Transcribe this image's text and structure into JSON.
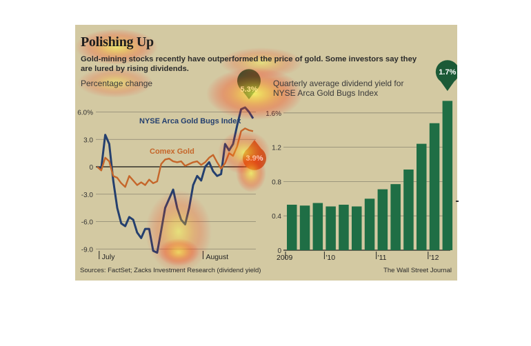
{
  "header": {
    "title": "Polishing Up",
    "subtitle_line1": "Gold-mining stocks recently have outperformed the price of gold. Some investors say they",
    "subtitle_line2": "are lured by rising dividends."
  },
  "footer": {
    "source": "Sources: FactSet; Zacks Investment Research (dividend yield)",
    "credit": "The Wall Street Journal"
  },
  "colors": {
    "background": "#d3c9a2",
    "gold_bugs_line": "#243f6e",
    "comex_line": "#c5662a",
    "bar": "#1f6e45",
    "callout_green": "#1c5a37",
    "callout_orange": "#c8612b"
  },
  "chart_data": [
    {
      "type": "line",
      "ylabel": "Percentage change",
      "ylim": [
        -9.0,
        7.0
      ],
      "yticks": [
        6.0,
        3.0,
        0,
        -3.0,
        -6.0,
        -9.0
      ],
      "ytick_labels": [
        "6.0%",
        "3.0",
        "0",
        "-3.0",
        "-6.0",
        "-9.0"
      ],
      "x_labels": [
        "July",
        "August"
      ],
      "x_label_positions": [
        1,
        27
      ],
      "grid": true,
      "series": [
        {
          "name": "NYSE Arca Gold Bugs Index",
          "end_label": "5.3%",
          "values": [
            0,
            -0.2,
            3.5,
            2.5,
            -1.5,
            -4.5,
            -6.2,
            -6.5,
            -5.5,
            -5.8,
            -7.2,
            -7.8,
            -6.8,
            -6.8,
            -9.2,
            -9.4,
            -7.0,
            -4.5,
            -3.5,
            -2.5,
            -4.5,
            -5.8,
            -6.3,
            -4.5,
            -2.0,
            -1.0,
            -1.5,
            0,
            0.5,
            -0.5,
            -1.0,
            -0.8,
            2.5,
            1.8,
            2.5,
            4.5,
            6.3,
            6.5,
            6.0,
            5.3
          ]
        },
        {
          "name": "Comex Gold",
          "end_label": "3.9%",
          "values": [
            0,
            -0.4,
            1.0,
            0.6,
            -1.0,
            -1.2,
            -1.8,
            -2.2,
            -1.0,
            -1.5,
            -2.0,
            -1.7,
            -2.0,
            -1.4,
            -1.8,
            -1.6,
            0.3,
            0.8,
            0.9,
            0.6,
            0.5,
            0.6,
            0.1,
            0.3,
            0.5,
            0.6,
            0.2,
            0.5,
            1.0,
            1.3,
            0.5,
            -0.2,
            0.4,
            1.5,
            1.2,
            2.2,
            3.9,
            4.2,
            4.0,
            3.9
          ]
        }
      ]
    },
    {
      "type": "bar",
      "title_line1": "Quarterly average dividend yield for",
      "title_line2": "NYSE Arca Gold Bugs Index",
      "ylim": [
        0,
        1.75
      ],
      "yticks": [
        0,
        0.4,
        0.8,
        1.2,
        1.6
      ],
      "ytick_labels": [
        "0",
        "0.4",
        "0.8",
        "1.2",
        "1.6%"
      ],
      "year_labels": [
        "2009",
        "'10",
        "'11",
        "'12"
      ],
      "year_label_indices": [
        0,
        3,
        7,
        11
      ],
      "end_label": "1.7%",
      "values": [
        0.53,
        0.52,
        0.55,
        0.51,
        0.53,
        0.51,
        0.6,
        0.71,
        0.77,
        0.94,
        1.24,
        1.48,
        1.74
      ],
      "grid": true
    }
  ]
}
